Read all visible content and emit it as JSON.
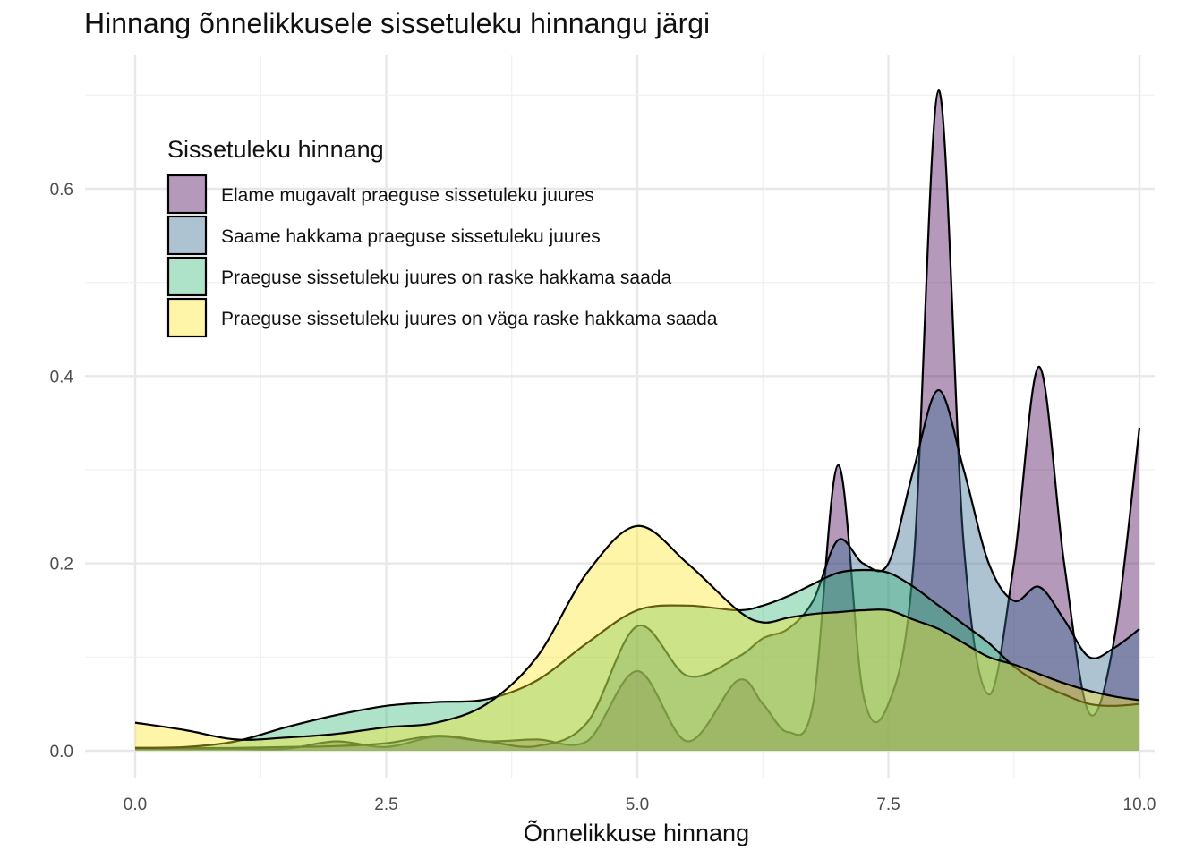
{
  "chart_data": {
    "type": "area",
    "subtype": "density",
    "title": "Hinnang õnnelikkusele sissetuleku hinnangu järgi",
    "xlabel": "Õnnelikkuse hinnang",
    "ylabel": "",
    "xlim": [
      0,
      10
    ],
    "ylim": [
      0,
      0.7
    ],
    "x_ticks": [
      0.0,
      2.5,
      5.0,
      7.5,
      10.0
    ],
    "x_tick_labels": [
      "0.0",
      "2.5",
      "5.0",
      "7.5",
      "10.0"
    ],
    "y_ticks": [
      0.0,
      0.2,
      0.4,
      0.6
    ],
    "y_tick_labels": [
      "0.0",
      "0.2",
      "0.4",
      "0.6"
    ],
    "grid": true,
    "legend": {
      "title": "Sissetuleku hinnang",
      "placement": "top-left, inside plot"
    },
    "x": [
      0,
      0.5,
      1,
      1.5,
      2,
      2.5,
      3,
      3.5,
      4,
      4.5,
      5,
      5.5,
      6,
      6.25,
      6.5,
      6.75,
      7,
      7.25,
      7.5,
      7.75,
      8,
      8.25,
      8.5,
      8.75,
      9,
      9.25,
      9.5,
      9.75,
      10
    ],
    "series": [
      {
        "name": "Elame mugavalt praeguse sissetuleku juures",
        "color": "#440154",
        "values": [
          0.002,
          0.002,
          0.002,
          0.002,
          0.01,
          0.004,
          0.015,
          0.01,
          0.012,
          0.01,
          0.085,
          0.01,
          0.075,
          0.05,
          0.02,
          0.05,
          0.305,
          0.06,
          0.05,
          0.2,
          0.705,
          0.22,
          0.06,
          0.2,
          0.41,
          0.2,
          0.04,
          0.12,
          0.345
        ]
      },
      {
        "name": "Saame hakkama praeguse sissetuleku juures",
        "color": "#31688e",
        "values": [
          0.003,
          0.003,
          0.003,
          0.004,
          0.005,
          0.008,
          0.016,
          0.01,
          0.005,
          0.03,
          0.133,
          0.08,
          0.1,
          0.12,
          0.13,
          0.16,
          0.225,
          0.2,
          0.2,
          0.3,
          0.385,
          0.3,
          0.2,
          0.16,
          0.175,
          0.14,
          0.1,
          0.11,
          0.13
        ]
      },
      {
        "name": "Praeguse sissetuleku juures on raske hakkama saada",
        "color": "#35b779",
        "values": [
          0.003,
          0.004,
          0.01,
          0.025,
          0.038,
          0.048,
          0.052,
          0.055,
          0.075,
          0.115,
          0.15,
          0.155,
          0.15,
          0.155,
          0.165,
          0.178,
          0.19,
          0.193,
          0.19,
          0.175,
          0.155,
          0.135,
          0.115,
          0.09,
          0.072,
          0.06,
          0.05,
          0.048,
          0.05
        ]
      },
      {
        "name": "Praeguse sissetuleku juures on väga raske hakkama saada",
        "color": "#fde725",
        "values": [
          0.03,
          0.022,
          0.012,
          0.014,
          0.018,
          0.025,
          0.03,
          0.05,
          0.1,
          0.19,
          0.24,
          0.2,
          0.15,
          0.137,
          0.142,
          0.146,
          0.148,
          0.15,
          0.15,
          0.14,
          0.13,
          0.115,
          0.1,
          0.092,
          0.082,
          0.072,
          0.064,
          0.058,
          0.054
        ]
      }
    ]
  }
}
